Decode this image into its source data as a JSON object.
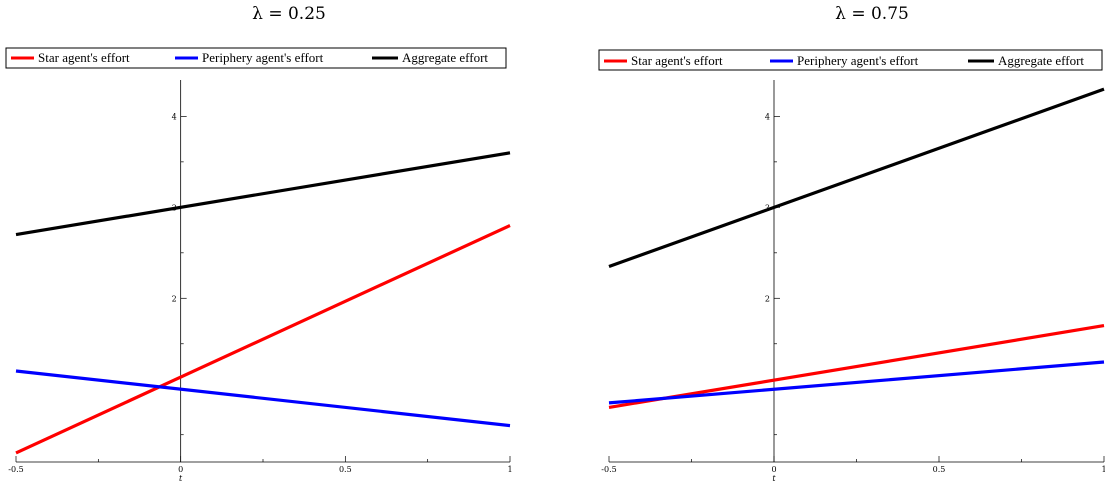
{
  "chart_data": [
    {
      "type": "line",
      "title": "λ = 0.25",
      "xlabel": "t",
      "ylabel": "",
      "xlim": [
        -0.5,
        1
      ],
      "ylim": [
        0.2,
        4.4
      ],
      "xticks": [
        "-0.5",
        "0",
        "0.5",
        "1"
      ],
      "yticks": [
        "2",
        "3",
        "4"
      ],
      "grid": false,
      "legend_position": "top",
      "series": [
        {
          "name": "Star agent's effort",
          "color": "#ff0000",
          "x": [
            -0.5,
            1
          ],
          "y": [
            0.3,
            2.8
          ]
        },
        {
          "name": "Periphery agent's effort",
          "color": "#0000ff",
          "x": [
            -0.5,
            1
          ],
          "y": [
            1.2,
            0.6
          ]
        },
        {
          "name": "Aggregate effort",
          "color": "#000000",
          "x": [
            -0.5,
            1
          ],
          "y": [
            2.7,
            3.6
          ]
        }
      ]
    },
    {
      "type": "line",
      "title": "λ = 0.75",
      "xlabel": "t",
      "ylabel": "",
      "xlim": [
        -0.5,
        1
      ],
      "ylim": [
        0.2,
        4.4
      ],
      "xticks": [
        "-0.5",
        "0",
        "0.5",
        "1"
      ],
      "yticks": [
        "2",
        "3",
        "4"
      ],
      "grid": false,
      "legend_position": "top",
      "series": [
        {
          "name": "Star agent's effort",
          "color": "#ff0000",
          "x": [
            -0.5,
            1
          ],
          "y": [
            0.8,
            1.7
          ]
        },
        {
          "name": "Periphery agent's effort",
          "color": "#0000ff",
          "x": [
            -0.5,
            1
          ],
          "y": [
            0.85,
            1.3
          ]
        },
        {
          "name": "Aggregate effort",
          "color": "#000000",
          "x": [
            -0.5,
            1
          ],
          "y": [
            2.35,
            4.3
          ]
        }
      ]
    }
  ]
}
